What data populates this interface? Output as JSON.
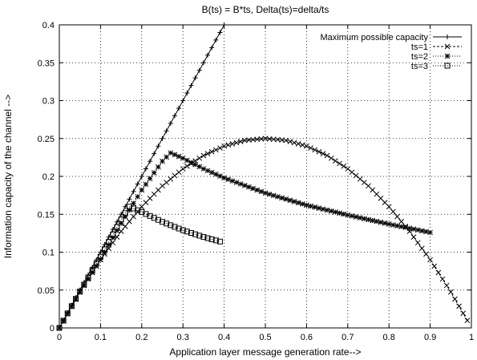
{
  "chart_data": {
    "type": "line",
    "title": "B(ts) = B*ts, Delta(ts)=delta/ts",
    "xlabel": "Application layer message generation rate-->",
    "ylabel": "Information capacity of the channel -->",
    "xlim": [
      0,
      1
    ],
    "ylim": [
      0,
      0.4
    ],
    "xticks": [
      "0",
      "0.1",
      "0.2",
      "0.3",
      "0.4",
      "0.5",
      "0.6",
      "0.7",
      "0.8",
      "0.9",
      "1"
    ],
    "yticks": [
      "0",
      "0.05",
      "0.1",
      "0.15",
      "0.2",
      "0.25",
      "0.3",
      "0.35",
      "0.4"
    ],
    "grid": true,
    "legend_position": "top-right",
    "series": [
      {
        "name": "Maximum possible capacity",
        "marker": "plus",
        "dash": "solid",
        "x": [
          0,
          0.05,
          0.1,
          0.15,
          0.2,
          0.25,
          0.3,
          0.35,
          0.4
        ],
        "y": [
          0,
          0.05,
          0.1,
          0.15,
          0.2,
          0.25,
          0.3,
          0.35,
          0.4
        ]
      },
      {
        "name": "ts=1",
        "marker": "cross",
        "dash": "dashed",
        "x": [
          0,
          0.05,
          0.1,
          0.15,
          0.2,
          0.25,
          0.3,
          0.35,
          0.4,
          0.45,
          0.5,
          0.55,
          0.6,
          0.65,
          0.7,
          0.75,
          0.8,
          0.85,
          0.9,
          0.95,
          0.99
        ],
        "y": [
          0,
          0.0475,
          0.09,
          0.1275,
          0.16,
          0.1875,
          0.21,
          0.2275,
          0.24,
          0.2475,
          0.25,
          0.2475,
          0.24,
          0.2275,
          0.21,
          0.1875,
          0.16,
          0.1275,
          0.09,
          0.0475,
          0.0099
        ]
      },
      {
        "name": "ts=2",
        "marker": "star",
        "dash": "dotted",
        "x": [
          0,
          0.05,
          0.1,
          0.15,
          0.2,
          0.25,
          0.27,
          0.3,
          0.35,
          0.4,
          0.5,
          0.6,
          0.7,
          0.8,
          0.9
        ],
        "y": [
          0,
          0.0475,
          0.0905,
          0.138,
          0.182,
          0.22,
          0.231,
          0.224,
          0.21,
          0.198,
          0.178,
          0.162,
          0.149,
          0.137,
          0.126
        ]
      },
      {
        "name": "ts=3",
        "marker": "square",
        "dash": "dotted",
        "x": [
          0,
          0.05,
          0.1,
          0.15,
          0.17,
          0.2,
          0.25,
          0.3,
          0.35,
          0.39
        ],
        "y": [
          0,
          0.048,
          0.094,
          0.143,
          0.16,
          0.153,
          0.14,
          0.129,
          0.12,
          0.114
        ]
      }
    ]
  }
}
